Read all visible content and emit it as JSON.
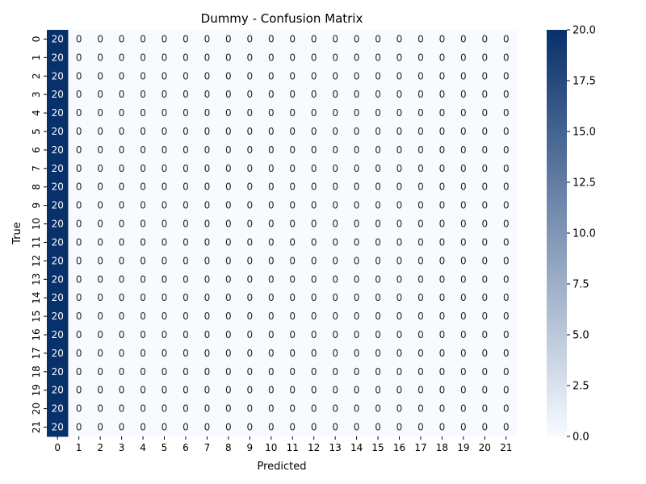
{
  "chart_data": {
    "type": "heatmap",
    "title": "Dummy - Confusion Matrix",
    "xlabel": "Predicted",
    "ylabel": "True",
    "x_categories": [
      "0",
      "1",
      "2",
      "3",
      "4",
      "5",
      "6",
      "7",
      "8",
      "9",
      "10",
      "11",
      "12",
      "13",
      "14",
      "15",
      "16",
      "17",
      "18",
      "19",
      "20",
      "21"
    ],
    "y_categories": [
      "0",
      "1",
      "2",
      "3",
      "4",
      "5",
      "6",
      "7",
      "8",
      "9",
      "10",
      "11",
      "12",
      "13",
      "14",
      "15",
      "16",
      "17",
      "18",
      "19",
      "20",
      "21"
    ],
    "matrix": [
      [
        20,
        0,
        0,
        0,
        0,
        0,
        0,
        0,
        0,
        0,
        0,
        0,
        0,
        0,
        0,
        0,
        0,
        0,
        0,
        0,
        0,
        0
      ],
      [
        20,
        0,
        0,
        0,
        0,
        0,
        0,
        0,
        0,
        0,
        0,
        0,
        0,
        0,
        0,
        0,
        0,
        0,
        0,
        0,
        0,
        0
      ],
      [
        20,
        0,
        0,
        0,
        0,
        0,
        0,
        0,
        0,
        0,
        0,
        0,
        0,
        0,
        0,
        0,
        0,
        0,
        0,
        0,
        0,
        0
      ],
      [
        20,
        0,
        0,
        0,
        0,
        0,
        0,
        0,
        0,
        0,
        0,
        0,
        0,
        0,
        0,
        0,
        0,
        0,
        0,
        0,
        0,
        0
      ],
      [
        20,
        0,
        0,
        0,
        0,
        0,
        0,
        0,
        0,
        0,
        0,
        0,
        0,
        0,
        0,
        0,
        0,
        0,
        0,
        0,
        0,
        0
      ],
      [
        20,
        0,
        0,
        0,
        0,
        0,
        0,
        0,
        0,
        0,
        0,
        0,
        0,
        0,
        0,
        0,
        0,
        0,
        0,
        0,
        0,
        0
      ],
      [
        20,
        0,
        0,
        0,
        0,
        0,
        0,
        0,
        0,
        0,
        0,
        0,
        0,
        0,
        0,
        0,
        0,
        0,
        0,
        0,
        0,
        0
      ],
      [
        20,
        0,
        0,
        0,
        0,
        0,
        0,
        0,
        0,
        0,
        0,
        0,
        0,
        0,
        0,
        0,
        0,
        0,
        0,
        0,
        0,
        0
      ],
      [
        20,
        0,
        0,
        0,
        0,
        0,
        0,
        0,
        0,
        0,
        0,
        0,
        0,
        0,
        0,
        0,
        0,
        0,
        0,
        0,
        0,
        0
      ],
      [
        20,
        0,
        0,
        0,
        0,
        0,
        0,
        0,
        0,
        0,
        0,
        0,
        0,
        0,
        0,
        0,
        0,
        0,
        0,
        0,
        0,
        0
      ],
      [
        20,
        0,
        0,
        0,
        0,
        0,
        0,
        0,
        0,
        0,
        0,
        0,
        0,
        0,
        0,
        0,
        0,
        0,
        0,
        0,
        0,
        0
      ],
      [
        20,
        0,
        0,
        0,
        0,
        0,
        0,
        0,
        0,
        0,
        0,
        0,
        0,
        0,
        0,
        0,
        0,
        0,
        0,
        0,
        0,
        0
      ],
      [
        20,
        0,
        0,
        0,
        0,
        0,
        0,
        0,
        0,
        0,
        0,
        0,
        0,
        0,
        0,
        0,
        0,
        0,
        0,
        0,
        0,
        0
      ],
      [
        20,
        0,
        0,
        0,
        0,
        0,
        0,
        0,
        0,
        0,
        0,
        0,
        0,
        0,
        0,
        0,
        0,
        0,
        0,
        0,
        0,
        0
      ],
      [
        20,
        0,
        0,
        0,
        0,
        0,
        0,
        0,
        0,
        0,
        0,
        0,
        0,
        0,
        0,
        0,
        0,
        0,
        0,
        0,
        0,
        0
      ],
      [
        20,
        0,
        0,
        0,
        0,
        0,
        0,
        0,
        0,
        0,
        0,
        0,
        0,
        0,
        0,
        0,
        0,
        0,
        0,
        0,
        0,
        0
      ],
      [
        20,
        0,
        0,
        0,
        0,
        0,
        0,
        0,
        0,
        0,
        0,
        0,
        0,
        0,
        0,
        0,
        0,
        0,
        0,
        0,
        0,
        0
      ],
      [
        20,
        0,
        0,
        0,
        0,
        0,
        0,
        0,
        0,
        0,
        0,
        0,
        0,
        0,
        0,
        0,
        0,
        0,
        0,
        0,
        0,
        0
      ],
      [
        20,
        0,
        0,
        0,
        0,
        0,
        0,
        0,
        0,
        0,
        0,
        0,
        0,
        0,
        0,
        0,
        0,
        0,
        0,
        0,
        0,
        0
      ],
      [
        20,
        0,
        0,
        0,
        0,
        0,
        0,
        0,
        0,
        0,
        0,
        0,
        0,
        0,
        0,
        0,
        0,
        0,
        0,
        0,
        0,
        0
      ],
      [
        20,
        0,
        0,
        0,
        0,
        0,
        0,
        0,
        0,
        0,
        0,
        0,
        0,
        0,
        0,
        0,
        0,
        0,
        0,
        0,
        0,
        0
      ],
      [
        20,
        0,
        0,
        0,
        0,
        0,
        0,
        0,
        0,
        0,
        0,
        0,
        0,
        0,
        0,
        0,
        0,
        0,
        0,
        0,
        0,
        0
      ]
    ],
    "colorbar": {
      "range": [
        0,
        20
      ],
      "ticks": [
        "0.0",
        "2.5",
        "5.0",
        "7.5",
        "10.0",
        "12.5",
        "15.0",
        "17.5",
        "20.0"
      ],
      "colormap": "Blues",
      "low_color": "#f7fbff",
      "high_color": "#08306b"
    },
    "annotations": true,
    "grid": false,
    "legend": "colorbar-right"
  }
}
